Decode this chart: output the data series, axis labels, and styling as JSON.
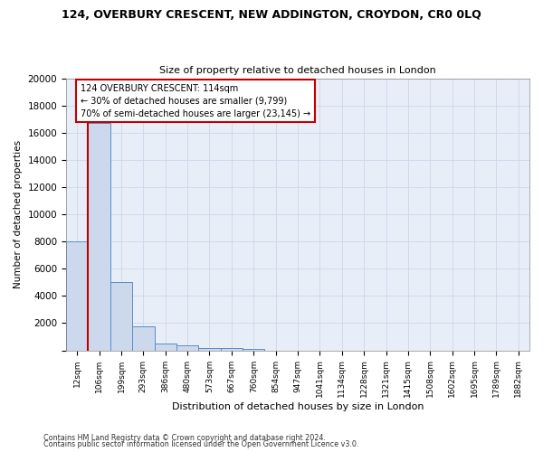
{
  "title1": "124, OVERBURY CRESCENT, NEW ADDINGTON, CROYDON, CR0 0LQ",
  "title2": "Size of property relative to detached houses in London",
  "xlabel": "Distribution of detached houses by size in London",
  "ylabel": "Number of detached properties",
  "bin_labels": [
    "12sqm",
    "106sqm",
    "199sqm",
    "293sqm",
    "386sqm",
    "480sqm",
    "573sqm",
    "667sqm",
    "760sqm",
    "854sqm",
    "947sqm",
    "1041sqm",
    "1134sqm",
    "1228sqm",
    "1321sqm",
    "1415sqm",
    "1508sqm",
    "1602sqm",
    "1695sqm",
    "1789sqm",
    "1882sqm"
  ],
  "bar_values": [
    8000,
    16700,
    5000,
    1800,
    500,
    350,
    200,
    150,
    100,
    0,
    0,
    0,
    0,
    0,
    0,
    0,
    0,
    0,
    0,
    0,
    0
  ],
  "bar_color": "#ccd9ed",
  "bar_edge_color": "#5b8dc8",
  "vline_color": "#c00000",
  "annotation_text": "124 OVERBURY CRESCENT: 114sqm\n← 30% of detached houses are smaller (9,799)\n70% of semi-detached houses are larger (23,145) →",
  "annotation_box_color": "#c00000",
  "ylim": [
    0,
    20000
  ],
  "yticks": [
    0,
    2000,
    4000,
    6000,
    8000,
    10000,
    12000,
    14000,
    16000,
    18000,
    20000
  ],
  "grid_color": "#c8d8ec",
  "footnote1": "Contains HM Land Registry data © Crown copyright and database right 2024.",
  "footnote2": "Contains public sector information licensed under the Open Government Licence v3.0.",
  "bg_color": "#ffffff",
  "plot_bg_color": "#e8eef8"
}
